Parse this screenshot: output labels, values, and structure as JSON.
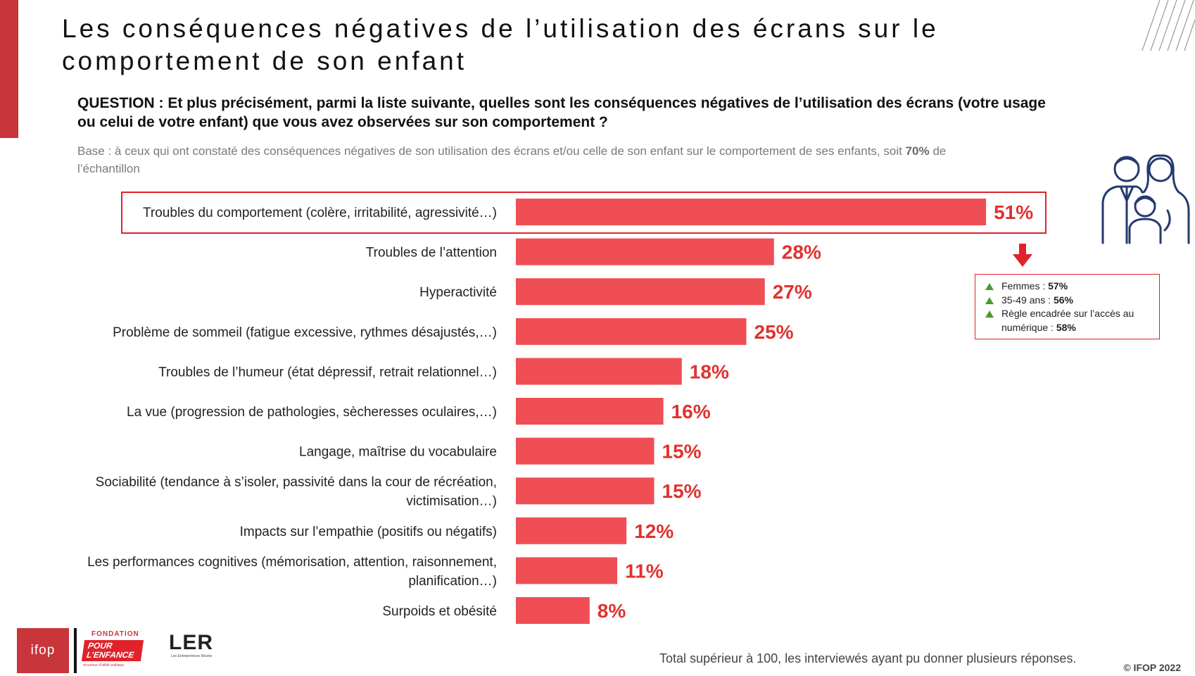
{
  "header": {
    "title": "Les conséquences négatives de l’utilisation des écrans sur le comportement de son enfant",
    "question": "QUESTION : Et plus précisément, parmi la liste suivante, quelles sont les conséquences négatives de l’utilisation des écrans (votre usage ou celui de votre enfant) que vous avez observées sur son comportement ?",
    "base_prefix": "Base : à ceux qui ont constaté des conséquences négatives de son utilisation des écrans et/ou celle de son enfant sur le comportement de ses enfants, soit ",
    "base_bold": "70%",
    "base_suffix": " de l’échantillon"
  },
  "chart_data": {
    "type": "bar",
    "orientation": "horizontal",
    "categories": [
      [
        "Troubles du comportement (colère, irritabilité, agressivité…)"
      ],
      [
        "Troubles de l’attention"
      ],
      [
        "Hyperactivité"
      ],
      [
        "Problème de sommeil (fatigue excessive, rythmes désajustés,…)"
      ],
      [
        "Troubles de l’humeur (état dépressif, retrait relationnel…)"
      ],
      [
        "La vue (progression de pathologies, sècheresses oculaires,…)"
      ],
      [
        "Langage, maîtrise du vocabulaire"
      ],
      [
        "Sociabilité (tendance à s’isoler, passivité dans la cour de récréation,",
        "victimisation…)"
      ],
      [
        "Impacts sur l’empathie (positifs ou négatifs)"
      ],
      [
        "Les performances cognitives (mémorisation, attention, raisonnement,",
        "planification…)"
      ],
      [
        "Surpoids et obésité"
      ]
    ],
    "values": [
      51,
      28,
      27,
      25,
      18,
      16,
      15,
      15,
      12,
      11,
      8
    ],
    "value_labels": [
      "51%",
      "28%",
      "27%",
      "25%",
      "18%",
      "16%",
      "15%",
      "15%",
      "12%",
      "11%",
      "8%"
    ],
    "bar_color": "#f04e55",
    "label_color": "#e0322e",
    "highlighted_index": 0
  },
  "subgroups": [
    {
      "label": "Femmes : ",
      "value": "57%"
    },
    {
      "label": "35-49 ans : ",
      "value": "56%"
    },
    {
      "label": "Règle encadrée sur l’accès au numérique : ",
      "value": "58%"
    }
  ],
  "footer": {
    "note": "Total supérieur à 100, les interviewés ayant pu donner plusieurs réponses.",
    "copyright": "© IFOP 2022"
  },
  "logos": {
    "ifop": "ifop",
    "fondation_top": "FONDATION",
    "fondation_main": "POUR L’ENFANCE",
    "fondation_small": "reconnue d’utilité publique",
    "ler": "LER",
    "ler_sub": "Les Entrepreneurs Réunis"
  },
  "icons": {
    "family": "family-icon",
    "arrow": "arrow-down-icon",
    "up_triangle": "triangle-up-icon"
  }
}
